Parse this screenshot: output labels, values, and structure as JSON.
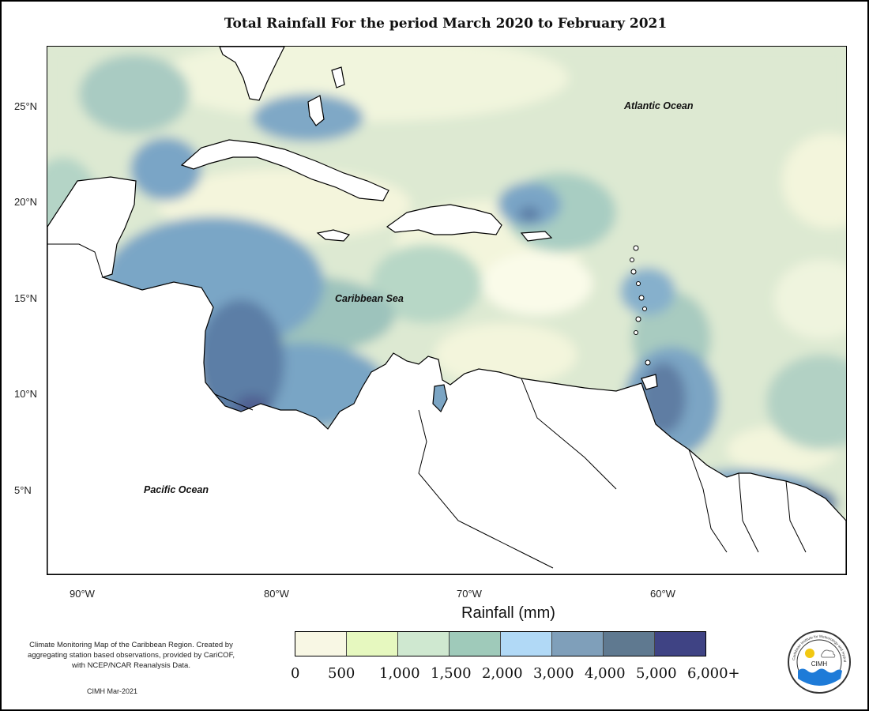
{
  "title": "Total Rainfall For the period March 2020 to February 2021",
  "latitude_labels": [
    "25°N",
    "20°N",
    "15°N",
    "10°N",
    "5°N"
  ],
  "longitude_labels": [
    "90°W",
    "80°W",
    "70°W",
    "60°W"
  ],
  "regions": {
    "atlantic": "Atlantic Ocean",
    "caribbean": "Caribbean Sea",
    "pacific": "Pacific Ocean"
  },
  "legend": {
    "title": "Rainfall (mm)",
    "colors": [
      "#f8f7e4",
      "#e6f8bf",
      "#cfe8d0",
      "#9fcaba",
      "#b1d9f6",
      "#7f9fba",
      "#5f7990",
      "#3f4384"
    ],
    "labels": [
      "0",
      "500",
      "1,000",
      "1,500",
      "2,000",
      "3,000",
      "4,000",
      "5,000",
      "6,000+"
    ]
  },
  "note": "Climate Monitoring Map of the Caribbean Region. Created by aggregating station based observations, provided by CariCOF, with NCEP/NCAR Reanalysis Data.",
  "credit": "CIMH Mar-2021",
  "logo": {
    "text": "CIMH",
    "ring_text": "Caribbean Institute for Meteorology and Hydrology"
  }
}
